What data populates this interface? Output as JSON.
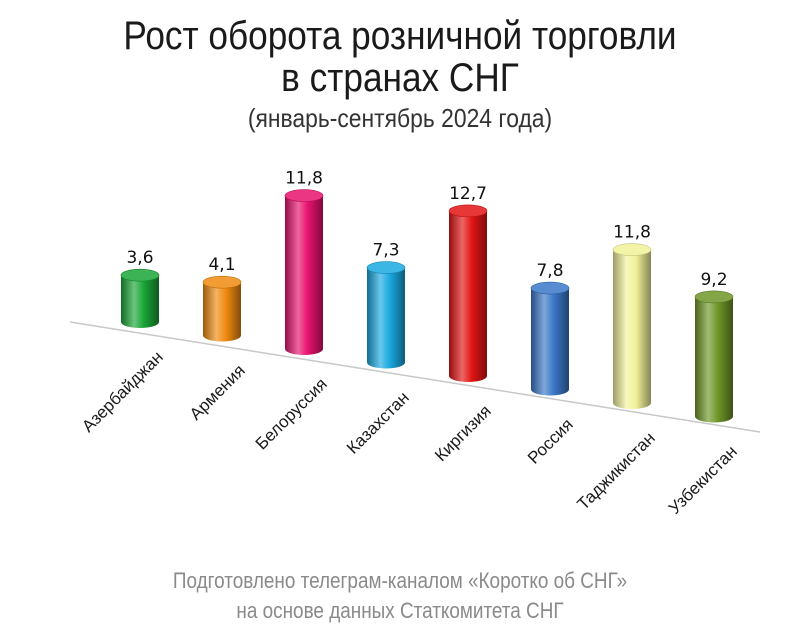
{
  "chart_data": {
    "type": "bar",
    "title": "Рост оборота розничной торговли",
    "title_line2": "в странах СНГ",
    "subtitle": "(январь-сентябрь 2024 года)",
    "categories": [
      "Азербайджан",
      "Армения",
      "Белоруссия",
      "Казахстан",
      "Киргизия",
      "Россия",
      "Таджикистан",
      "Узбекистан"
    ],
    "values": [
      3.6,
      4.1,
      11.8,
      7.3,
      12.7,
      7.8,
      11.8,
      9.2
    ],
    "value_labels": [
      "3,6",
      "4,1",
      "11,8",
      "7,3",
      "12,7",
      "7,8",
      "11,8",
      "9,2"
    ],
    "colors": [
      "#1aa637",
      "#f08a10",
      "#e8126e",
      "#19a9e0",
      "#e31414",
      "#3a78c8",
      "#f2f29a",
      "#6f9628"
    ],
    "xlabel": "",
    "ylabel": "",
    "grid": false,
    "legend": "none"
  },
  "footer": {
    "line1": "Подготовлено телеграм-каналом «Коротко об СНГ»",
    "line2": "на основе данных Статкомитета СНГ"
  }
}
